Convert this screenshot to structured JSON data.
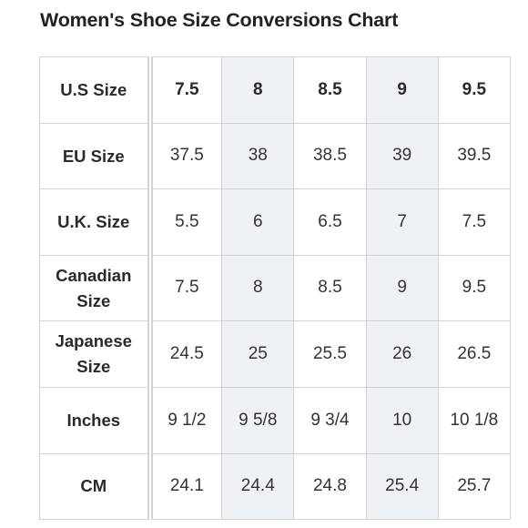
{
  "title": "Women's Shoe Size Conversions Chart",
  "colors": {
    "border": "#cfd3d7",
    "shaded_column": "#eef2f6",
    "text": "#333333"
  },
  "shaded_columns": [
    1,
    3
  ],
  "table": {
    "rows": [
      {
        "label": "U.S Size",
        "values": [
          "7.5",
          "8",
          "8.5",
          "9",
          "9.5"
        ]
      },
      {
        "label": "EU Size",
        "values": [
          "37.5",
          "38",
          "38.5",
          "39",
          "39.5"
        ]
      },
      {
        "label": "U.K. Size",
        "values": [
          "5.5",
          "6",
          "6.5",
          "7",
          "7.5"
        ]
      },
      {
        "label": "Canadian Size",
        "values": [
          "7.5",
          "8",
          "8.5",
          "9",
          "9.5"
        ]
      },
      {
        "label": "Japanese Size",
        "values": [
          "24.5",
          "25",
          "25.5",
          "26",
          "26.5"
        ]
      },
      {
        "label": "Inches",
        "values": [
          "9 1/2",
          "9 5/8",
          "9 3/4",
          "10",
          "10 1/8"
        ]
      },
      {
        "label": "CM",
        "values": [
          "24.1",
          "24.4",
          "24.8",
          "25.4",
          "25.7"
        ]
      }
    ]
  }
}
